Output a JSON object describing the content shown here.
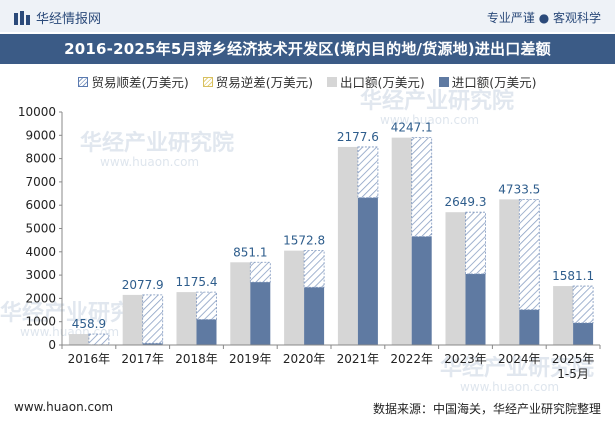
{
  "header": {
    "brand_name": "华经情报网",
    "slogan": "专业严谨 ● 客观科学"
  },
  "colors": {
    "header_bg": "#eef2f7",
    "title_bg": "#3b5b86",
    "export": "#d6d6d6",
    "import": "#5f7aa2",
    "surplus_hatch": "#8aa0c4",
    "label": "#2e5d8c"
  },
  "watermark": {
    "text": "华经产业研究院",
    "url": "www.huaon.com"
  },
  "footer": {
    "website": "www.huaon.com",
    "source": "数据来源：中国海关，华经产业研究院整理"
  },
  "chart_data": {
    "type": "bar",
    "title": "2016-2025年5月萍乡经济技术开发区(境内目的地/货源地)进出口差额",
    "legend": [
      "贸易顺差(万美元)",
      "贸易逆差(万美元)",
      "出口额(万美元)",
      "进口额(万美元)"
    ],
    "categories": [
      "2016年",
      "2017年",
      "2018年",
      "2019年",
      "2020年",
      "2021年",
      "2022年",
      "2023年",
      "2024年",
      "2025年 1-5月"
    ],
    "category_lines": [
      [
        "2016年"
      ],
      [
        "2017年"
      ],
      [
        "2018年"
      ],
      [
        "2019年"
      ],
      [
        "2020年"
      ],
      [
        "2021年"
      ],
      [
        "2022年"
      ],
      [
        "2023年"
      ],
      [
        "2024年"
      ],
      [
        "2025年",
        "1-5月"
      ]
    ],
    "ylim": [
      0,
      10000
    ],
    "yticks": [
      0,
      1000,
      2000,
      3000,
      4000,
      5000,
      6000,
      7000,
      8000,
      9000,
      10000
    ],
    "series": [
      {
        "name": "出口额(万美元)",
        "values": [
          470,
          2150,
          2270,
          3550,
          4050,
          8500,
          8900,
          5700,
          6250,
          2530
        ]
      },
      {
        "name": "进口额(万美元)",
        "values": [
          11,
          72,
          1095,
          2700,
          2477,
          6322,
          4653,
          3051,
          1516,
          949
        ]
      },
      {
        "name": "贸易顺差(万美元)",
        "values": [
          458.9,
          2077.9,
          1175.4,
          851.1,
          1572.8,
          2177.6,
          4247.1,
          2649.3,
          4733.5,
          1581.1
        ]
      },
      {
        "name": "贸易逆差(万美元)",
        "values": [
          0,
          0,
          0,
          0,
          0,
          0,
          0,
          0,
          0,
          0
        ]
      }
    ],
    "data_labels": [
      "458.9",
      "2077.9",
      "1175.4",
      "851.1",
      "1572.8",
      "2177.6",
      "4247.1",
      "2649.3",
      "4733.5",
      "1581.1"
    ],
    "grid": false
  }
}
